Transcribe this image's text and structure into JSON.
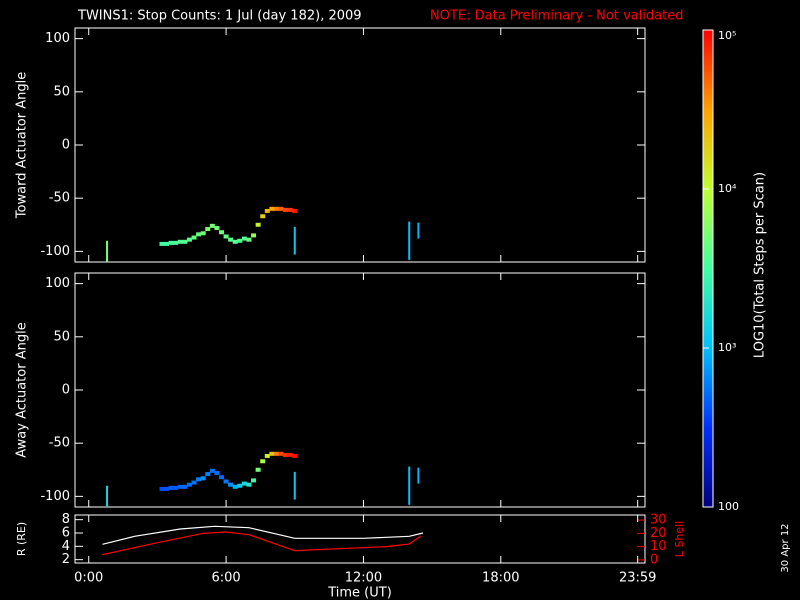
{
  "title": "TWINS1: Stop Counts:  1 Jul (day 182), 2009",
  "note": "NOTE: Data Preliminary - Not validated",
  "note_color": "#ff0000",
  "date_stamp": "30 Apr 12",
  "chart_data": [
    {
      "type": "scatter",
      "y_label": "Toward Actuator Angle",
      "xlim": [
        -0.6,
        24.3
      ],
      "ylim": [
        -110,
        110
      ],
      "yticks": [
        100,
        50,
        0,
        -50,
        -100
      ],
      "trace": {
        "x": [
          3.2,
          3.4,
          3.6,
          3.8,
          4.0,
          4.2,
          4.4,
          4.6,
          4.8,
          5.0,
          5.2,
          5.4,
          5.6,
          5.8,
          6.0,
          6.2,
          6.4,
          6.6,
          6.8,
          7.0,
          7.2,
          7.4,
          7.6,
          7.8,
          8.0,
          8.2,
          8.4,
          8.6,
          8.8,
          9.0
        ],
        "y": [
          -93,
          -93,
          -92,
          -92,
          -91,
          -91,
          -89,
          -87,
          -84,
          -83,
          -79,
          -76,
          -78,
          -82,
          -86,
          -89,
          -91,
          -90,
          -88,
          -89,
          -85,
          -75,
          -67,
          -62,
          -60,
          -60,
          -60,
          -61,
          -61,
          -62
        ],
        "counts": [
          3000,
          3200,
          3300,
          3500,
          3600,
          3800,
          4000,
          4200,
          4500,
          5000,
          5500,
          5200,
          5000,
          4600,
          4200,
          4000,
          3800,
          3600,
          3800,
          4500,
          7000,
          12000,
          18000,
          25000,
          30000,
          40000,
          50000,
          60000,
          70000,
          80000
        ]
      },
      "segments": [
        {
          "x": 0.8,
          "y_from": -110,
          "y_to": -90,
          "counts": 5000
        },
        {
          "x": 9.0,
          "y_from": -103,
          "y_to": -77,
          "counts": 1200
        },
        {
          "x": 14.0,
          "y_from": -108,
          "y_to": -72,
          "counts": 1000
        },
        {
          "x": 14.4,
          "y_from": -88,
          "y_to": -73,
          "counts": 900
        }
      ]
    },
    {
      "type": "scatter",
      "y_label": "Away Actuator Angle",
      "xlim": [
        -0.6,
        24.3
      ],
      "ylim": [
        -110,
        110
      ],
      "yticks": [
        100,
        50,
        0,
        -50,
        -100
      ],
      "trace": {
        "x": [
          3.2,
          3.4,
          3.6,
          3.8,
          4.0,
          4.2,
          4.4,
          4.6,
          4.8,
          5.0,
          5.2,
          5.4,
          5.6,
          5.8,
          6.0,
          6.2,
          6.4,
          6.6,
          6.8,
          7.0,
          7.2,
          7.4,
          7.6,
          7.8,
          8.0,
          8.2,
          8.4,
          8.6,
          8.8,
          9.0
        ],
        "y": [
          -93,
          -93,
          -92,
          -92,
          -91,
          -91,
          -89,
          -87,
          -84,
          -83,
          -79,
          -76,
          -78,
          -82,
          -86,
          -89,
          -91,
          -90,
          -88,
          -89,
          -85,
          -75,
          -67,
          -62,
          -60,
          -60,
          -60,
          -61,
          -61,
          -62
        ],
        "counts": [
          400,
          420,
          450,
          450,
          480,
          500,
          520,
          550,
          600,
          700,
          600,
          550,
          520,
          500,
          560,
          700,
          900,
          1200,
          1500,
          2000,
          3000,
          5000,
          8000,
          12000,
          20000,
          40000,
          60000,
          70000,
          80000,
          90000
        ]
      },
      "segments": [
        {
          "x": 0.8,
          "y_from": -110,
          "y_to": -90,
          "counts": 1500
        },
        {
          "x": 9.0,
          "y_from": -103,
          "y_to": -77,
          "counts": 1200
        },
        {
          "x": 14.0,
          "y_from": -108,
          "y_to": -72,
          "counts": 1000
        },
        {
          "x": 14.4,
          "y_from": -88,
          "y_to": -73,
          "counts": 900
        }
      ]
    },
    {
      "type": "line",
      "x_label": "Time (UT)",
      "y_label": "R (RE)",
      "y2_label": "L Shell",
      "y2_color": "#ff0000",
      "xlim": [
        -0.6,
        24.3
      ],
      "xticks": [
        {
          "value": 0,
          "label": "0:00"
        },
        {
          "value": 6,
          "label": "6:00"
        },
        {
          "value": 12,
          "label": "12:00"
        },
        {
          "value": 18,
          "label": "18:00"
        },
        {
          "value": 23.98,
          "label": "23:59"
        }
      ],
      "ylim": [
        1.5,
        8.7
      ],
      "yticks": [
        8,
        6,
        4,
        2
      ],
      "y2lim": [
        -2.3,
        33.8
      ],
      "y2ticks": [
        30,
        20,
        10,
        0
      ],
      "series": [
        {
          "color": "#ffffff",
          "x": [
            0.6,
            2,
            4,
            5.5,
            7,
            9,
            12,
            14,
            14.6
          ],
          "values": [
            4.3,
            5.5,
            6.6,
            7,
            6.8,
            5.2,
            5.2,
            5.5,
            6
          ]
        },
        {
          "color": "#ff0000",
          "axis": "y2",
          "x": [
            0.6,
            3,
            5,
            6,
            7,
            9,
            13,
            14,
            14.5
          ],
          "values": [
            4,
            13,
            20,
            21,
            19,
            7,
            10,
            12,
            18
          ]
        }
      ]
    },
    {
      "type": "colorbar",
      "label": "LOG10(Total Steps per Scan)",
      "clim": [
        100,
        100000
      ],
      "log": true,
      "ticks": [
        {
          "value": 100000,
          "label": "10⁵"
        },
        {
          "value": 10000,
          "label": "10⁴"
        },
        {
          "value": 1000,
          "label": "10³"
        },
        100
      ],
      "colormap": [
        "#00007f",
        "#0030ff",
        "#00c0ff",
        "#40ffa0",
        "#c0ff30",
        "#ffa000",
        "#ff0000"
      ]
    }
  ]
}
